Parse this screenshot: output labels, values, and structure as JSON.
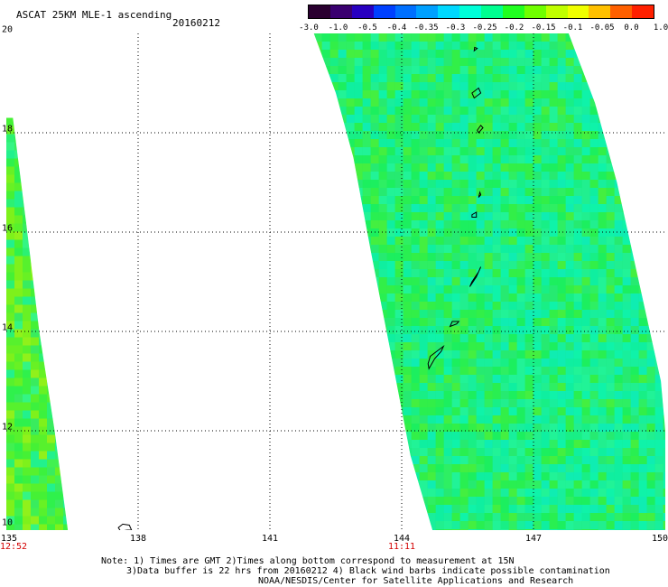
{
  "header": {
    "title": "ASCAT 25KM MLE-1 ascending",
    "date": "20160212"
  },
  "colorbar": {
    "colors": [
      "#2a0030",
      "#3a0070",
      "#2800c0",
      "#0040ff",
      "#0070ff",
      "#00a0ff",
      "#00d8ff",
      "#00ffd8",
      "#00ff90",
      "#20ff20",
      "#70ff00",
      "#c0ff00",
      "#f0ff00",
      "#ffc000",
      "#ff6000",
      "#ff2000"
    ],
    "tick_labels": [
      "-3.0",
      "-1.0",
      "-0.5",
      "-0.4",
      "-0.35",
      "-0.3",
      "-0.25",
      "-0.2",
      "-0.15",
      "-0.1",
      "-0.05",
      "0.0",
      "1.0"
    ]
  },
  "map": {
    "lat_labels": [
      "20",
      "18",
      "16",
      "14",
      "12",
      "10"
    ],
    "lon_labels": [
      "135",
      "138",
      "141",
      "144",
      "147",
      "150"
    ],
    "time_labels": [
      {
        "text": "12:52",
        "lon": 135
      },
      {
        "text": "11:11",
        "lon": 144
      }
    ],
    "extent": {
      "lon_min": 135,
      "lon_max": 150,
      "lat_min": 10,
      "lat_max": 20
    },
    "swaths": [
      {
        "name": "west-swath",
        "polygon": [
          [
            135,
            18.3
          ],
          [
            135.15,
            18.3
          ],
          [
            135.45,
            16.2
          ],
          [
            135.75,
            14.0
          ],
          [
            136.1,
            12.0
          ],
          [
            136.4,
            10.0
          ],
          [
            135,
            10.0
          ]
        ],
        "base_color": "#4cf23c"
      },
      {
        "name": "east-swath",
        "polygon": [
          [
            142.0,
            20.0
          ],
          [
            147.8,
            20.0
          ],
          [
            148.4,
            18.6
          ],
          [
            148.9,
            17.0
          ],
          [
            149.4,
            15.0
          ],
          [
            149.9,
            13.0
          ],
          [
            150,
            12.0
          ],
          [
            150,
            10.0
          ],
          [
            144.7,
            10.0
          ],
          [
            144.2,
            11.5
          ],
          [
            143.7,
            13.8
          ],
          [
            143.3,
            15.6
          ],
          [
            142.9,
            17.5
          ],
          [
            142.5,
            18.8
          ]
        ],
        "base_color": "#22ee66"
      }
    ],
    "islands": [
      {
        "name": "guam",
        "points": [
          [
            144.62,
            13.25
          ],
          [
            144.75,
            13.45
          ],
          [
            144.9,
            13.6
          ],
          [
            144.95,
            13.7
          ],
          [
            144.8,
            13.6
          ],
          [
            144.65,
            13.5
          ],
          [
            144.6,
            13.35
          ]
        ]
      },
      {
        "name": "rota",
        "points": [
          [
            145.1,
            14.1
          ],
          [
            145.25,
            14.15
          ],
          [
            145.3,
            14.2
          ],
          [
            145.15,
            14.2
          ]
        ]
      },
      {
        "name": "tinian-saipan",
        "points": [
          [
            145.55,
            14.9
          ],
          [
            145.7,
            15.1
          ],
          [
            145.8,
            15.3
          ],
          [
            145.75,
            15.2
          ],
          [
            145.6,
            15.0
          ]
        ]
      },
      {
        "name": "anatahan",
        "points": [
          [
            145.6,
            16.3
          ],
          [
            145.7,
            16.3
          ],
          [
            145.7,
            16.4
          ],
          [
            145.6,
            16.35
          ]
        ]
      },
      {
        "name": "sarigan",
        "points": [
          [
            145.75,
            16.7
          ],
          [
            145.8,
            16.75
          ],
          [
            145.78,
            16.8
          ]
        ]
      },
      {
        "name": "pagan",
        "points": [
          [
            145.75,
            18.0
          ],
          [
            145.85,
            18.1
          ],
          [
            145.8,
            18.15
          ],
          [
            145.72,
            18.05
          ]
        ]
      },
      {
        "name": "agrihan",
        "points": [
          [
            145.65,
            18.7
          ],
          [
            145.8,
            18.8
          ],
          [
            145.75,
            18.9
          ],
          [
            145.6,
            18.8
          ]
        ]
      },
      {
        "name": "asuncion",
        "points": [
          [
            145.65,
            19.65
          ],
          [
            145.72,
            19.7
          ],
          [
            145.66,
            19.72
          ]
        ]
      },
      {
        "name": "yap",
        "points": [
          [
            137.6,
            9.98
          ],
          [
            137.75,
            10.0
          ],
          [
            137.85,
            10.0
          ],
          [
            137.8,
            10.1
          ],
          [
            137.65,
            10.12
          ],
          [
            137.55,
            10.05
          ]
        ]
      }
    ]
  },
  "notes": {
    "line1": "Note: 1) Times are GMT 2)Times along bottom correspond to measurement at 15N",
    "line2": "3)Data buffer is 22 hrs from 20160212 4) Black wind barbs indicate possible contamination",
    "line3": "NOAA/NESDIS/Center for Satellite Applications and Research"
  }
}
